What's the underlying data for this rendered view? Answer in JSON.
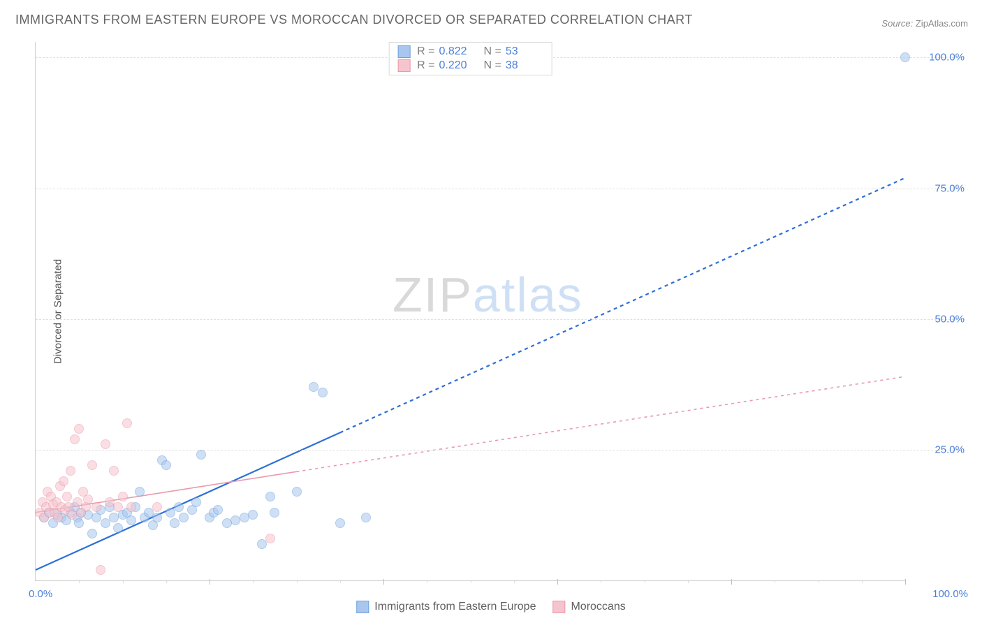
{
  "title": "IMMIGRANTS FROM EASTERN EUROPE VS MOROCCAN DIVORCED OR SEPARATED CORRELATION CHART",
  "source": {
    "label": "Source:",
    "name": "ZipAtlas.com"
  },
  "ylabel": "Divorced or Separated",
  "watermark": {
    "zip": "ZIP",
    "atlas": "atlas"
  },
  "chart": {
    "type": "scatter-with-regression",
    "xlim": [
      0,
      100
    ],
    "ylim": [
      0,
      103
    ],
    "xlabel_min": "0.0%",
    "xlabel_max": "100.0%",
    "yticks": [
      {
        "v": 25,
        "label": "25.0%"
      },
      {
        "v": 50,
        "label": "50.0%"
      },
      {
        "v": 75,
        "label": "75.0%"
      },
      {
        "v": 100,
        "label": "100.0%"
      }
    ],
    "xticks_major_step": 20,
    "xticks_minor_step": 5,
    "background_color": "#ffffff",
    "grid_color": "#e0e0e0",
    "point_radius": 7,
    "point_opacity": 0.55,
    "series": [
      {
        "key": "eastern_europe",
        "label": "Immigrants from Eastern Europe",
        "color_fill": "#a9c7ee",
        "color_stroke": "#6fa1dd",
        "r": "0.822",
        "n": "53",
        "regression": {
          "x1": 0,
          "y1": 2,
          "x2": 100,
          "y2": 77,
          "solid_to_x": 35,
          "color": "#2d6fd6",
          "width": 2.2,
          "dash": "5,5"
        },
        "points": [
          [
            1,
            12
          ],
          [
            1.5,
            13
          ],
          [
            2,
            11
          ],
          [
            2.5,
            12.5
          ],
          [
            3,
            12
          ],
          [
            3.5,
            11.5
          ],
          [
            4,
            13
          ],
          [
            4.5,
            14
          ],
          [
            4.8,
            12
          ],
          [
            5,
            11
          ],
          [
            5.2,
            13
          ],
          [
            6,
            12.5
          ],
          [
            6.5,
            9
          ],
          [
            7,
            12
          ],
          [
            7.5,
            13.5
          ],
          [
            8,
            11
          ],
          [
            8.5,
            14
          ],
          [
            9,
            12
          ],
          [
            9.5,
            10
          ],
          [
            10,
            12.5
          ],
          [
            10.5,
            13
          ],
          [
            11,
            11.5
          ],
          [
            11.5,
            14
          ],
          [
            12,
            17
          ],
          [
            12.5,
            12
          ],
          [
            13,
            13
          ],
          [
            13.5,
            10.5
          ],
          [
            14,
            12
          ],
          [
            14.5,
            23
          ],
          [
            15,
            22
          ],
          [
            15.5,
            13
          ],
          [
            16,
            11
          ],
          [
            16.5,
            14
          ],
          [
            17,
            12
          ],
          [
            18,
            13.5
          ],
          [
            18.5,
            15
          ],
          [
            19,
            24
          ],
          [
            20,
            12
          ],
          [
            20.5,
            13
          ],
          [
            21,
            13.5
          ],
          [
            22,
            11
          ],
          [
            23,
            11.5
          ],
          [
            24,
            12
          ],
          [
            25,
            12.5
          ],
          [
            26,
            7
          ],
          [
            27,
            16
          ],
          [
            27.5,
            13
          ],
          [
            30,
            17
          ],
          [
            32,
            37
          ],
          [
            33,
            36
          ],
          [
            35,
            11
          ],
          [
            38,
            12
          ],
          [
            100,
            100
          ]
        ]
      },
      {
        "key": "moroccans",
        "label": "Moroccans",
        "color_fill": "#f6c4cd",
        "color_stroke": "#ea9aaa",
        "r": "0.220",
        "n": "38",
        "regression": {
          "x1": 0,
          "y1": 13,
          "x2": 100,
          "y2": 39,
          "solid_to_x": 30,
          "color": "#e89aab",
          "width": 1.6,
          "dash": "4,5"
        },
        "points": [
          [
            0.5,
            13
          ],
          [
            0.8,
            15
          ],
          [
            1,
            12
          ],
          [
            1.2,
            14
          ],
          [
            1.4,
            17
          ],
          [
            1.6,
            13
          ],
          [
            1.8,
            16
          ],
          [
            2,
            14.5
          ],
          [
            2.2,
            13
          ],
          [
            2.4,
            15
          ],
          [
            2.6,
            12
          ],
          [
            2.8,
            18
          ],
          [
            3,
            14
          ],
          [
            3.2,
            19
          ],
          [
            3.4,
            13.5
          ],
          [
            3.6,
            16
          ],
          [
            3.8,
            14
          ],
          [
            4,
            21
          ],
          [
            4.2,
            12.5
          ],
          [
            4.5,
            27
          ],
          [
            4.8,
            15
          ],
          [
            5,
            29
          ],
          [
            5.2,
            13
          ],
          [
            5.5,
            17
          ],
          [
            5.8,
            14
          ],
          [
            6,
            15.5
          ],
          [
            6.5,
            22
          ],
          [
            7,
            14
          ],
          [
            7.5,
            2
          ],
          [
            8,
            26
          ],
          [
            8.5,
            15
          ],
          [
            9,
            21
          ],
          [
            9.5,
            14
          ],
          [
            10,
            16
          ],
          [
            10.5,
            30
          ],
          [
            11,
            14
          ],
          [
            14,
            14
          ],
          [
            27,
            8
          ]
        ]
      }
    ]
  },
  "legend_bottom": [
    {
      "key": "eastern_europe",
      "label": "Immigrants from Eastern Europe"
    },
    {
      "key": "moroccans",
      "label": "Moroccans"
    }
  ]
}
